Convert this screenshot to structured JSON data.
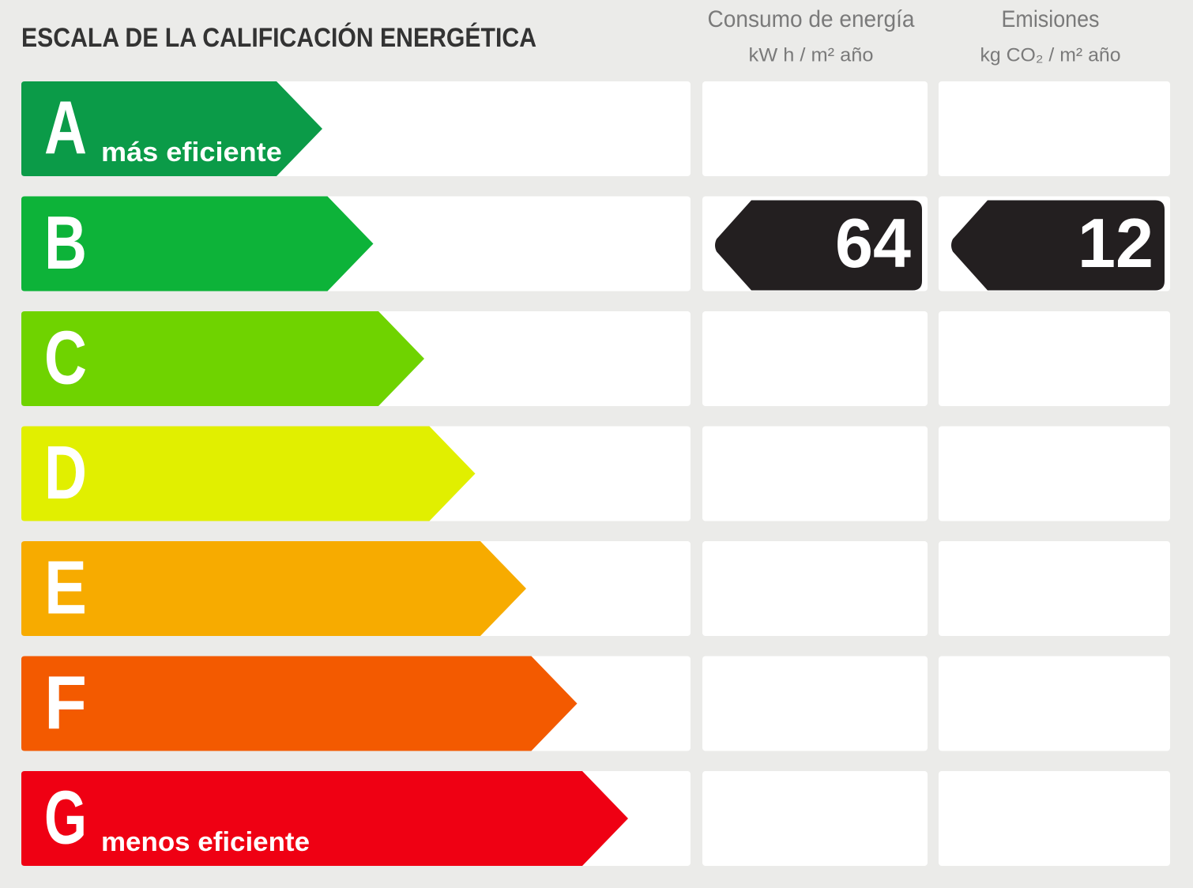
{
  "header": {
    "title": "ESCALA DE LA CALIFICACIÓN ENERGÉTICA",
    "columns": [
      {
        "title": "Consumo de energía",
        "unit": "kW h / m² año"
      },
      {
        "title": "Emisiones",
        "unit": "kg CO₂ / m² año"
      }
    ]
  },
  "rows": [
    {
      "letter": "A",
      "note": "más eficiente",
      "color": "#0b9b48"
    },
    {
      "letter": "B",
      "color": "#0db339",
      "values": [
        64,
        12
      ]
    },
    {
      "letter": "C",
      "color": "#6fd300"
    },
    {
      "letter": "D",
      "color": "#e1ef00"
    },
    {
      "letter": "E",
      "color": "#f7ab00"
    },
    {
      "letter": "F",
      "color": "#f35a00"
    },
    {
      "letter": "G",
      "note": "menos eficiente",
      "color": "#ef0013"
    }
  ]
}
